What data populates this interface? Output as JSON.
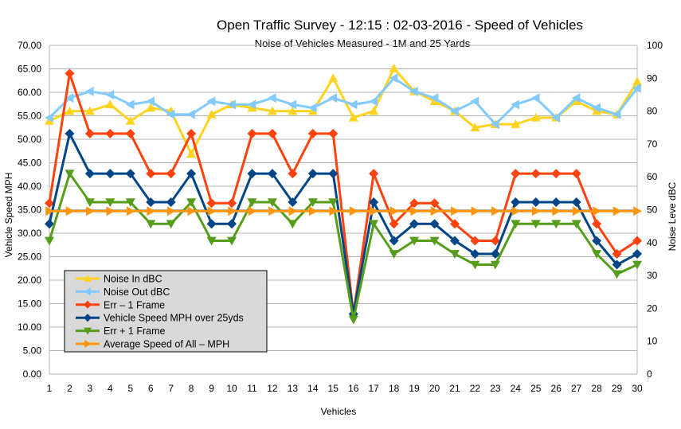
{
  "chart_data": {
    "type": "line",
    "title": "Open Traffic Survey - 12:15 : 02-03-2016 - Speed of Vehicles",
    "subtitle": "Noise of Vehicles Measured - 1M and 25 Yards",
    "xlabel": "Vehicles",
    "ylabel": "Vehicle Speed MPH",
    "y2label": "Noise Leve dBC",
    "x": [
      1,
      2,
      3,
      4,
      5,
      6,
      7,
      8,
      9,
      10,
      11,
      12,
      13,
      14,
      15,
      16,
      17,
      18,
      19,
      20,
      21,
      22,
      23,
      24,
      25,
      26,
      27,
      28,
      29,
      30
    ],
    "ylim": [
      0,
      70
    ],
    "yticks": [
      "0.00",
      "5.00",
      "10.00",
      "15.00",
      "20.00",
      "25.00",
      "30.00",
      "35.00",
      "40.00",
      "45.00",
      "50.00",
      "55.00",
      "60.00",
      "65.00",
      "70.00"
    ],
    "y2lim": [
      0,
      100
    ],
    "y2ticks": [
      "0",
      "10",
      "20",
      "30",
      "40",
      "50",
      "60",
      "70",
      "80",
      "90",
      "100"
    ],
    "grid": true,
    "legend_position": "bottom-left",
    "series": [
      {
        "name": "Noise In dBC",
        "axis": "right",
        "color": "#ffd320",
        "marker": "triangle-up",
        "values": [
          77,
          80,
          80,
          82,
          77,
          81,
          80,
          67,
          79,
          82,
          81,
          80,
          80,
          80,
          90,
          78,
          80,
          93,
          86,
          83,
          80,
          75,
          76,
          76,
          78,
          78,
          83,
          80,
          79,
          89
        ]
      },
      {
        "name": "Noise Out dBC",
        "axis": "right",
        "color": "#83caff",
        "marker": "triangle-left",
        "values": [
          78,
          84,
          86,
          85,
          82,
          83,
          79,
          79,
          83,
          82,
          82,
          84,
          82,
          81,
          84,
          82,
          83,
          90,
          86,
          84,
          80,
          83,
          76,
          82,
          84,
          78,
          84,
          81,
          79,
          87
        ]
      },
      {
        "name": "Err – 1 Frame",
        "axis": "left",
        "color": "#ff420e",
        "marker": "diamond",
        "values": [
          36.4,
          64.0,
          51.2,
          51.2,
          51.2,
          42.7,
          42.7,
          51.2,
          36.4,
          36.4,
          51.2,
          51.2,
          42.7,
          51.2,
          51.2,
          12.8,
          42.7,
          32.0,
          36.4,
          36.4,
          32.0,
          28.4,
          28.4,
          42.7,
          42.7,
          42.7,
          42.7,
          32.0,
          25.6,
          28.4
        ]
      },
      {
        "name": "Vehicle Speed MPH over 25yds",
        "axis": "left",
        "color": "#004586",
        "marker": "diamond",
        "values": [
          32.0,
          51.2,
          42.7,
          42.7,
          42.7,
          36.6,
          36.6,
          42.7,
          32.0,
          32.0,
          42.7,
          42.7,
          36.6,
          42.7,
          42.7,
          12.8,
          36.6,
          28.4,
          32.0,
          32.0,
          28.4,
          25.6,
          25.6,
          36.6,
          36.6,
          36.6,
          36.6,
          28.4,
          23.3,
          25.6
        ]
      },
      {
        "name": "Err + 1 Frame",
        "axis": "left",
        "color": "#579d1c",
        "marker": "triangle-down",
        "values": [
          28.4,
          42.7,
          36.6,
          36.6,
          36.6,
          32.0,
          32.0,
          36.6,
          28.4,
          28.4,
          36.6,
          36.6,
          32.0,
          36.6,
          36.6,
          11.6,
          32.0,
          25.6,
          28.4,
          28.4,
          25.6,
          23.3,
          23.3,
          32.0,
          32.0,
          32.0,
          32.0,
          25.6,
          21.3,
          23.3
        ]
      },
      {
        "name": "Average Speed of All – MPH",
        "axis": "left",
        "color": "#ff950e",
        "marker": "triangle-right",
        "values": [
          34.7,
          34.7,
          34.7,
          34.7,
          34.7,
          34.7,
          34.7,
          34.7,
          34.7,
          34.7,
          34.7,
          34.7,
          34.7,
          34.7,
          34.7,
          34.7,
          34.7,
          34.7,
          34.7,
          34.7,
          34.7,
          34.7,
          34.7,
          34.7,
          34.7,
          34.7,
          34.7,
          34.7,
          34.7,
          34.7
        ]
      }
    ]
  }
}
